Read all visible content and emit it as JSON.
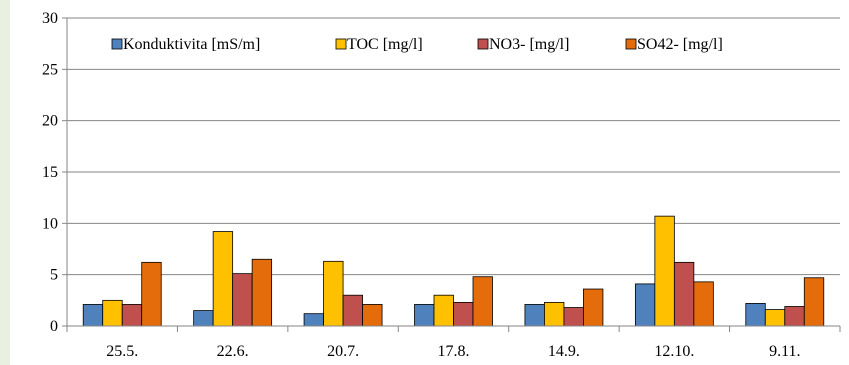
{
  "chart_data": {
    "type": "bar",
    "title": "",
    "xlabel": "",
    "ylabel": "",
    "categories": [
      "25.5.",
      "22.6.",
      "20.7.",
      "17.8.",
      "14.9.",
      "12.10.",
      "9.11."
    ],
    "ylim": [
      0,
      30
    ],
    "yticks": [
      "0",
      "5",
      "10",
      "15",
      "20",
      "25",
      "30"
    ],
    "grid": true,
    "legend_position": "top",
    "series": [
      {
        "name": "Konduktivita [mS/m]",
        "color": "#4f81bd",
        "values": [
          2.1,
          1.5,
          1.2,
          2.1,
          2.1,
          4.1,
          2.2
        ]
      },
      {
        "name": "TOC [mg/l]",
        "color": "#ffc000",
        "values": [
          2.5,
          9.2,
          6.3,
          3.0,
          2.3,
          10.7,
          1.6
        ]
      },
      {
        "name": "NO3- [mg/l]",
        "color": "#c0504d",
        "values": [
          2.1,
          5.1,
          3.0,
          2.3,
          1.8,
          6.2,
          1.9
        ]
      },
      {
        "name": "SO42- [mg/l]",
        "color": "#e46c0a",
        "values": [
          6.2,
          6.5,
          2.1,
          4.8,
          3.6,
          4.3,
          4.7
        ]
      }
    ]
  }
}
